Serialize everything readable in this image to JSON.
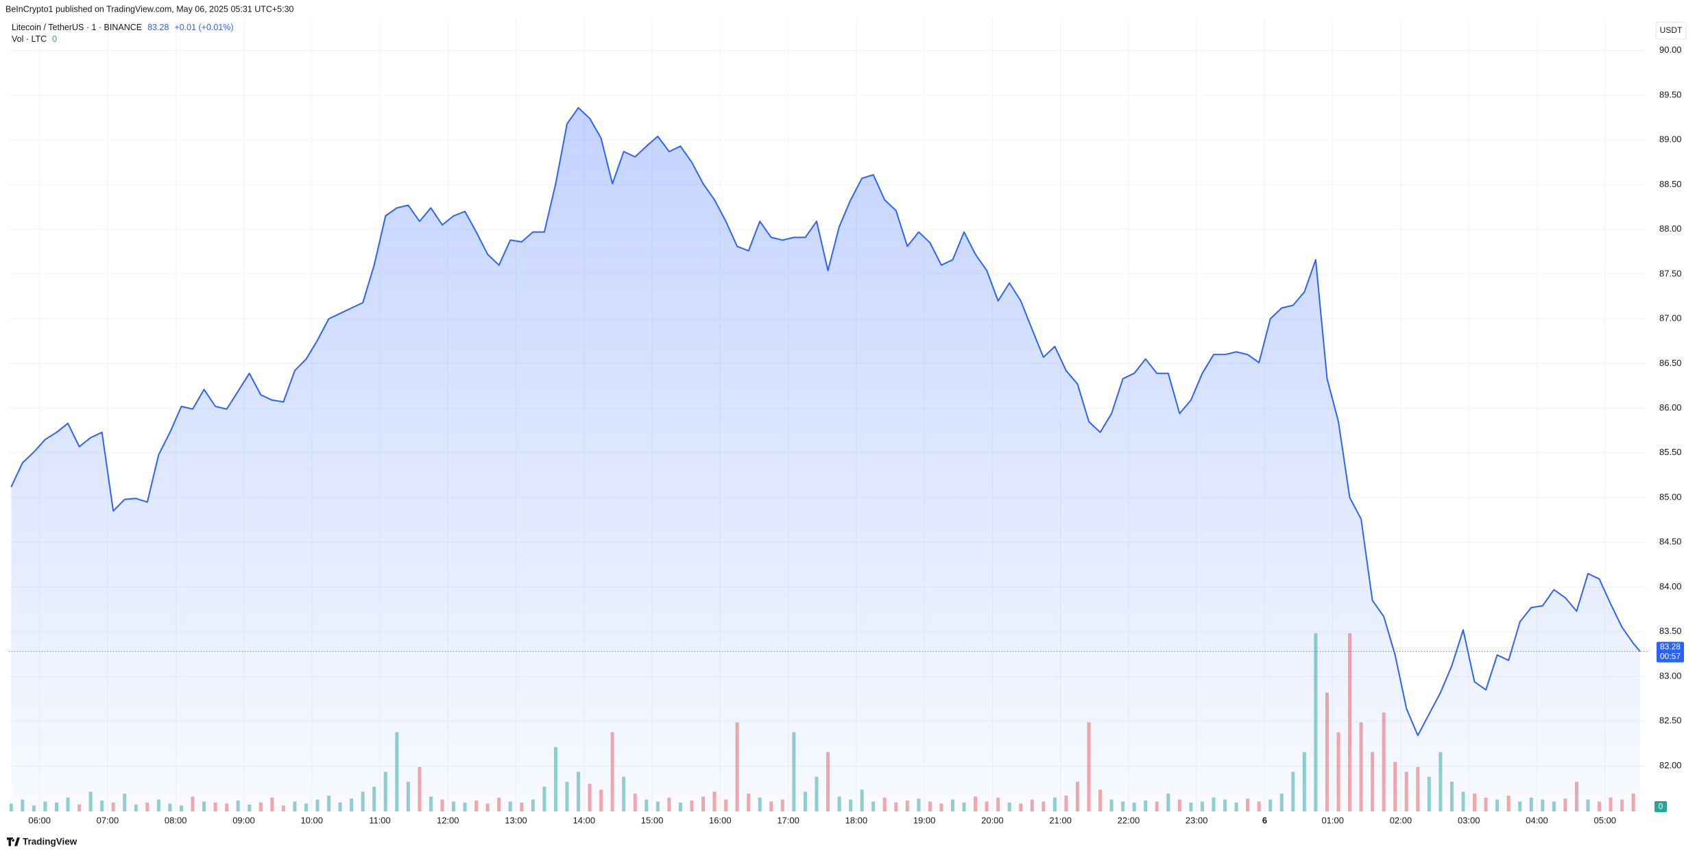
{
  "header": {
    "text": "BeInCrypto1 published on TradingView.com, May 06, 2025 05:31 UTC+5:30"
  },
  "footer": {
    "brand": "TradingView"
  },
  "chart_data": {
    "type": "area",
    "currency": "USDT",
    "change": "+0.01 (+0.01%)",
    "countdown": "00:57",
    "grid": true,
    "xlim": [
      "05:33",
      "05:37"
    ],
    "xticks": [
      "06:00",
      "07:00",
      "08:00",
      "09:00",
      "10:00",
      "11:00",
      "12:00",
      "13:00",
      "14:00",
      "15:00",
      "16:00",
      "17:00",
      "18:00",
      "19:00",
      "20:00",
      "21:00",
      "22:00",
      "23:00",
      {
        "value": "00:00",
        "label": "6"
      },
      "01:00",
      "02:00",
      "03:00",
      "04:00",
      "05:00"
    ],
    "ylim": [
      81.49,
      90.35
    ],
    "yticks": [
      {
        "value": 82,
        "label": "82.00"
      },
      {
        "value": 82.5,
        "label": "82.50"
      },
      {
        "value": 83,
        "label": "83.00"
      },
      {
        "value": 83.5,
        "label": "83.50"
      },
      {
        "value": 84,
        "label": "84.00"
      },
      {
        "value": 84.5,
        "label": "84.50"
      },
      {
        "value": 85,
        "label": "85.00"
      },
      {
        "value": 85.5,
        "label": "85.50"
      },
      {
        "value": 86,
        "label": "86.00"
      },
      {
        "value": 86.5,
        "label": "86.50"
      },
      {
        "value": 87,
        "label": "87.00"
      },
      {
        "value": 87.5,
        "label": "87.50"
      },
      {
        "value": 88,
        "label": "88.00"
      },
      {
        "value": 88.5,
        "label": "88.50"
      },
      {
        "value": 89,
        "label": "89.00"
      },
      {
        "value": 89.5,
        "label": "89.50"
      },
      {
        "value": 90,
        "label": "90.00"
      }
    ],
    "y2lim": [
      0,
      800
    ],
    "x": [
      "05:35",
      "05:45",
      "05:55",
      "06:05",
      "06:15",
      "06:25",
      "06:35",
      "06:45",
      "06:55",
      "07:05",
      "07:15",
      "07:25",
      "07:35",
      "07:45",
      "07:55",
      "08:05",
      "08:15",
      "08:25",
      "08:35",
      "08:45",
      "08:55",
      "09:05",
      "09:15",
      "09:25",
      "09:35",
      "09:45",
      "09:55",
      "10:05",
      "10:15",
      "10:25",
      "10:35",
      "10:45",
      "10:55",
      "11:05",
      "11:15",
      "11:25",
      "11:35",
      "11:45",
      "11:55",
      "12:05",
      "12:15",
      "12:25",
      "12:35",
      "12:45",
      "12:55",
      "13:05",
      "13:15",
      "13:25",
      "13:35",
      "13:45",
      "13:55",
      "14:05",
      "14:15",
      "14:25",
      "14:35",
      "14:45",
      "14:55",
      "15:05",
      "15:15",
      "15:25",
      "15:35",
      "15:45",
      "15:55",
      "16:05",
      "16:15",
      "16:25",
      "16:35",
      "16:45",
      "16:55",
      "17:05",
      "17:15",
      "17:25",
      "17:35",
      "17:45",
      "17:55",
      "18:05",
      "18:15",
      "18:25",
      "18:35",
      "18:45",
      "18:55",
      "19:05",
      "19:15",
      "19:25",
      "19:35",
      "19:45",
      "19:55",
      "20:05",
      "20:15",
      "20:25",
      "20:35",
      "20:45",
      "20:55",
      "21:05",
      "21:15",
      "21:25",
      "21:35",
      "21:45",
      "21:55",
      "22:05",
      "22:15",
      "22:25",
      "22:35",
      "22:45",
      "22:55",
      "23:05",
      "23:15",
      "23:25",
      "23:35",
      "23:45",
      "23:55",
      "00:05",
      "00:15",
      "00:25",
      "00:35",
      "00:45",
      "00:55",
      "01:05",
      "01:15",
      "01:25",
      "01:35",
      "01:45",
      "01:55",
      "02:05",
      "02:15",
      "02:25",
      "02:35",
      "02:45",
      "02:55",
      "03:05",
      "03:15",
      "03:25",
      "03:35",
      "03:45",
      "03:55",
      "04:05",
      "04:15",
      "04:25",
      "04:35",
      "04:45",
      "04:55",
      "05:05",
      "05:15",
      "05:25",
      "05:31"
    ],
    "series": [
      {
        "name": "Litecoin / TetherUS · 1 · BINANCE",
        "color": "#2962ff",
        "values": [
          85.12,
          85.39,
          85.51,
          85.65,
          85.73,
          85.83,
          85.57,
          85.67,
          85.73,
          84.85,
          84.98,
          84.99,
          84.95,
          85.48,
          85.73,
          86.02,
          85.99,
          86.21,
          86.02,
          85.99,
          86.19,
          86.39,
          86.15,
          86.09,
          86.07,
          86.42,
          86.55,
          86.76,
          87.0,
          87.06,
          87.12,
          87.18,
          87.6,
          88.15,
          88.24,
          88.27,
          88.09,
          88.24,
          88.05,
          88.15,
          88.2,
          87.97,
          87.72,
          87.6,
          87.88,
          87.86,
          87.97,
          87.97,
          88.51,
          89.18,
          89.36,
          89.24,
          89.02,
          88.51,
          88.87,
          88.81,
          88.93,
          89.04,
          88.87,
          88.93,
          88.75,
          88.51,
          88.33,
          88.09,
          87.81,
          87.76,
          88.09,
          87.91,
          87.88,
          87.91,
          87.91,
          88.09,
          87.54,
          88.03,
          88.33,
          88.57,
          88.61,
          88.33,
          88.21,
          87.81,
          87.97,
          87.85,
          87.6,
          87.66,
          87.97,
          87.72,
          87.54,
          87.2,
          87.4,
          87.2,
          86.88,
          86.57,
          86.69,
          86.42,
          86.27,
          85.85,
          85.73,
          85.94,
          86.33,
          86.39,
          86.55,
          86.39,
          86.39,
          85.94,
          86.09,
          86.39,
          86.6,
          86.6,
          86.63,
          86.6,
          86.51,
          87.0,
          87.12,
          87.15,
          87.3,
          87.66,
          86.33,
          85.85,
          85.0,
          84.76,
          83.85,
          83.67,
          83.24,
          82.64,
          82.34,
          82.58,
          82.82,
          83.12,
          83.52,
          82.94,
          82.85,
          83.24,
          83.18,
          83.61,
          83.77,
          83.79,
          83.97,
          83.88,
          83.73,
          84.15,
          84.09,
          83.81,
          83.55,
          83.37,
          83.28
        ]
      },
      {
        "name": "Vol · LTC",
        "axis": "y2",
        "up_color": "rgba(38,166,154,0.5)",
        "down_color": "rgba(239,83,80,0.5)",
        "values": [
          8,
          12,
          6,
          10,
          9,
          14,
          7,
          20,
          11,
          9,
          18,
          7,
          9,
          12,
          8,
          6,
          15,
          10,
          9,
          8,
          11,
          7,
          9,
          14,
          6,
          10,
          8,
          12,
          16,
          9,
          13,
          20,
          25,
          40,
          80,
          30,
          45,
          15,
          12,
          10,
          9,
          11,
          8,
          14,
          10,
          9,
          12,
          25,
          65,
          30,
          40,
          28,
          22,
          80,
          35,
          18,
          12,
          10,
          14,
          9,
          11,
          15,
          20,
          12,
          90,
          18,
          14,
          10,
          12,
          80,
          20,
          35,
          60,
          15,
          12,
          22,
          10,
          14,
          9,
          11,
          13,
          10,
          8,
          12,
          9,
          15,
          10,
          14,
          9,
          8,
          12,
          10,
          14,
          16,
          30,
          90,
          22,
          12,
          10,
          9,
          11,
          10,
          18,
          12,
          9,
          10,
          14,
          12,
          9,
          13,
          10,
          12,
          18,
          40,
          60,
          180,
          120,
          80,
          180,
          90,
          60,
          100,
          50,
          40,
          45,
          35,
          60,
          30,
          20,
          18,
          14,
          12,
          16,
          10,
          14,
          12,
          10,
          13,
          30,
          12,
          10,
          14,
          12,
          18,
          0
        ]
      }
    ]
  }
}
